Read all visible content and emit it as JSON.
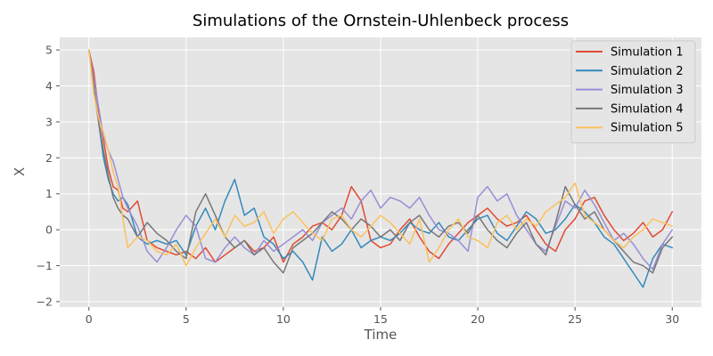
{
  "chart_data": {
    "type": "line",
    "title": "Simulations of the Ornstein-Uhlenbeck process",
    "xlabel": "Time",
    "ylabel": "X",
    "xlim": [
      -1.5,
      31.5
    ],
    "ylim": [
      -2.15,
      5.35
    ],
    "xticks": [
      0,
      5,
      10,
      15,
      20,
      25,
      30
    ],
    "yticks": [
      -2,
      -1,
      0,
      1,
      2,
      3,
      4,
      5
    ],
    "grid": true,
    "legend": "top-right",
    "series": [
      {
        "name": "Simulation 1",
        "color": "#E24A33",
        "x": [
          0,
          0.25,
          0.5,
          0.75,
          1,
          1.25,
          1.5,
          1.75,
          2,
          2.5,
          3,
          3.5,
          4,
          4.5,
          5,
          5.5,
          6,
          6.5,
          7,
          7.5,
          8,
          8.5,
          9,
          9.5,
          10,
          10.5,
          11,
          11.5,
          12,
          12.5,
          13,
          13.5,
          14,
          14.5,
          15,
          15.5,
          16,
          16.5,
          17,
          17.5,
          18,
          18.5,
          19,
          19.5,
          20,
          20.5,
          21,
          21.5,
          22,
          22.5,
          23,
          23.5,
          24,
          24.5,
          25,
          25.5,
          26,
          26.5,
          27,
          27.5,
          28,
          28.5,
          29,
          29.5,
          30
        ],
        "y": [
          5.0,
          4.4,
          3.3,
          2.5,
          1.7,
          1.2,
          1.1,
          0.6,
          0.5,
          0.8,
          -0.3,
          -0.5,
          -0.6,
          -0.7,
          -0.6,
          -0.8,
          -0.5,
          -0.9,
          -0.7,
          -0.5,
          -0.3,
          -0.6,
          -0.5,
          -0.2,
          -0.9,
          -0.4,
          -0.2,
          0.1,
          0.2,
          0.0,
          0.4,
          1.2,
          0.8,
          -0.3,
          -0.5,
          -0.4,
          0.0,
          0.3,
          -0.2,
          -0.6,
          -0.8,
          -0.4,
          -0.1,
          0.2,
          0.4,
          0.6,
          0.3,
          0.1,
          0.2,
          0.4,
          0.0,
          -0.4,
          -0.6,
          0.0,
          0.3,
          0.8,
          0.9,
          0.4,
          0.0,
          -0.3,
          -0.1,
          0.2,
          -0.2,
          0.0,
          0.5
        ]
      },
      {
        "name": "Simulation 2",
        "color": "#348ABD",
        "x": [
          0,
          0.25,
          0.5,
          0.75,
          1,
          1.25,
          1.5,
          1.75,
          2,
          2.5,
          3,
          3.5,
          4,
          4.5,
          5,
          5.5,
          6,
          6.5,
          7,
          7.5,
          8,
          8.5,
          9,
          9.5,
          10,
          10.5,
          11,
          11.5,
          12,
          12.5,
          13,
          13.5,
          14,
          14.5,
          15,
          15.5,
          16,
          16.5,
          17,
          17.5,
          18,
          18.5,
          19,
          19.5,
          20,
          20.5,
          21,
          21.5,
          22,
          22.5,
          23,
          23.5,
          24,
          24.5,
          25,
          25.5,
          26,
          26.5,
          27,
          27.5,
          28,
          28.5,
          29,
          29.5,
          30
        ],
        "y": [
          5.0,
          3.9,
          3.0,
          2.0,
          1.4,
          1.0,
          0.8,
          0.9,
          0.7,
          -0.2,
          -0.4,
          -0.3,
          -0.4,
          -0.3,
          -0.7,
          0.1,
          0.6,
          0.0,
          0.8,
          1.4,
          0.4,
          0.6,
          -0.2,
          -0.4,
          -0.8,
          -0.6,
          -0.9,
          -1.4,
          -0.2,
          -0.6,
          -0.4,
          0.0,
          -0.5,
          -0.3,
          -0.2,
          -0.3,
          -0.1,
          0.2,
          0.0,
          -0.1,
          0.2,
          -0.2,
          -0.3,
          0.0,
          0.3,
          0.4,
          -0.1,
          -0.3,
          0.1,
          0.5,
          0.3,
          -0.1,
          0.0,
          0.3,
          0.7,
          0.5,
          0.2,
          -0.2,
          -0.4,
          -0.8,
          -1.2,
          -1.6,
          -0.8,
          -0.4,
          -0.5
        ]
      },
      {
        "name": "Simulation 3",
        "color": "#988ED5",
        "x": [
          0,
          0.25,
          0.5,
          0.75,
          1,
          1.25,
          1.5,
          1.75,
          2,
          2.5,
          3,
          3.5,
          4,
          4.5,
          5,
          5.5,
          6,
          6.5,
          7,
          7.5,
          8,
          8.5,
          9,
          9.5,
          10,
          10.5,
          11,
          11.5,
          12,
          12.5,
          13,
          13.5,
          14,
          14.5,
          15,
          15.5,
          16,
          16.5,
          17,
          17.5,
          18,
          18.5,
          19,
          19.5,
          20,
          20.5,
          21,
          21.5,
          22,
          22.5,
          23,
          23.5,
          24,
          24.5,
          25,
          25.5,
          26,
          26.5,
          27,
          27.5,
          28,
          28.5,
          29,
          29.5,
          30
        ],
        "y": [
          5.0,
          4.2,
          3.4,
          2.6,
          2.2,
          1.9,
          1.4,
          0.9,
          0.6,
          0.1,
          -0.6,
          -0.9,
          -0.5,
          0.0,
          0.4,
          0.1,
          -0.8,
          -0.9,
          -0.5,
          -0.2,
          -0.5,
          -0.7,
          -0.3,
          -0.6,
          -0.4,
          -0.2,
          0.0,
          -0.3,
          0.2,
          0.4,
          0.6,
          0.3,
          0.8,
          1.1,
          0.6,
          0.9,
          0.8,
          0.6,
          0.9,
          0.4,
          0.0,
          -0.1,
          -0.3,
          -0.6,
          0.9,
          1.2,
          0.8,
          1.0,
          0.4,
          0.0,
          -0.4,
          -0.6,
          0.1,
          0.8,
          0.6,
          1.1,
          0.7,
          0.2,
          -0.3,
          -0.1,
          -0.4,
          -0.8,
          -1.1,
          -0.4,
          0.0
        ]
      },
      {
        "name": "Simulation 4",
        "color": "#777777",
        "x": [
          0,
          0.25,
          0.5,
          0.75,
          1,
          1.25,
          1.5,
          1.75,
          2,
          2.5,
          3,
          3.5,
          4,
          4.5,
          5,
          5.5,
          6,
          6.5,
          7,
          7.5,
          8,
          8.5,
          9,
          9.5,
          10,
          10.5,
          11,
          11.5,
          12,
          12.5,
          13,
          13.5,
          14,
          14.5,
          15,
          15.5,
          16,
          16.5,
          17,
          17.5,
          18,
          18.5,
          19,
          19.5,
          20,
          20.5,
          21,
          21.5,
          22,
          22.5,
          23,
          23.5,
          24,
          24.5,
          25,
          25.5,
          26,
          26.5,
          27,
          27.5,
          28,
          28.5,
          29,
          29.5,
          30
        ],
        "y": [
          5.0,
          4.0,
          3.0,
          2.2,
          1.5,
          0.9,
          0.6,
          0.4,
          0.3,
          -0.2,
          0.2,
          -0.1,
          -0.3,
          -0.6,
          -0.8,
          0.5,
          1.0,
          0.4,
          -0.2,
          -0.5,
          -0.3,
          -0.7,
          -0.5,
          -0.9,
          -1.2,
          -0.5,
          -0.3,
          -0.1,
          0.2,
          0.5,
          0.3,
          0.0,
          0.3,
          0.1,
          -0.2,
          0.0,
          -0.3,
          0.2,
          0.4,
          0.0,
          -0.2,
          0.1,
          0.2,
          -0.1,
          0.4,
          0.0,
          -0.3,
          -0.5,
          -0.1,
          0.2,
          -0.4,
          -0.7,
          0.2,
          1.2,
          0.7,
          0.3,
          0.5,
          0.0,
          -0.3,
          -0.6,
          -0.9,
          -1.0,
          -1.2,
          -0.5,
          -0.2
        ]
      },
      {
        "name": "Simulation 5",
        "color": "#FBC15E",
        "x": [
          0,
          0.25,
          0.5,
          0.75,
          1,
          1.25,
          1.5,
          1.75,
          2,
          2.5,
          3,
          3.5,
          4,
          4.5,
          5,
          5.5,
          6,
          6.5,
          7,
          7.5,
          8,
          8.5,
          9,
          9.5,
          10,
          10.5,
          11,
          11.5,
          12,
          12.5,
          13,
          13.5,
          14,
          14.5,
          15,
          15.5,
          16,
          16.5,
          17,
          17.5,
          18,
          18.5,
          19,
          19.5,
          20,
          20.5,
          21,
          21.5,
          22,
          22.5,
          23,
          23.5,
          24,
          24.5,
          25,
          25.5,
          26,
          26.5,
          27,
          27.5,
          28,
          28.5,
          29,
          29.5,
          30
        ],
        "y": [
          5.0,
          3.8,
          3.1,
          2.7,
          2.2,
          1.6,
          1.2,
          0.3,
          -0.5,
          -0.2,
          -0.3,
          -0.6,
          -0.7,
          -0.4,
          -1.0,
          -0.5,
          -0.1,
          0.3,
          -0.2,
          0.4,
          0.1,
          0.2,
          0.5,
          -0.1,
          0.3,
          0.5,
          0.2,
          -0.1,
          -0.3,
          0.3,
          0.4,
          0.0,
          -0.2,
          0.1,
          0.4,
          0.2,
          -0.1,
          -0.4,
          0.3,
          -0.9,
          -0.5,
          0.0,
          0.3,
          -0.2,
          -0.3,
          -0.5,
          0.2,
          0.4,
          0.0,
          0.3,
          0.1,
          0.5,
          0.7,
          0.9,
          1.3,
          0.4,
          0.2,
          0.0,
          -0.3,
          -0.5,
          -0.2,
          0.0,
          0.3,
          0.2,
          0.1
        ]
      }
    ]
  }
}
